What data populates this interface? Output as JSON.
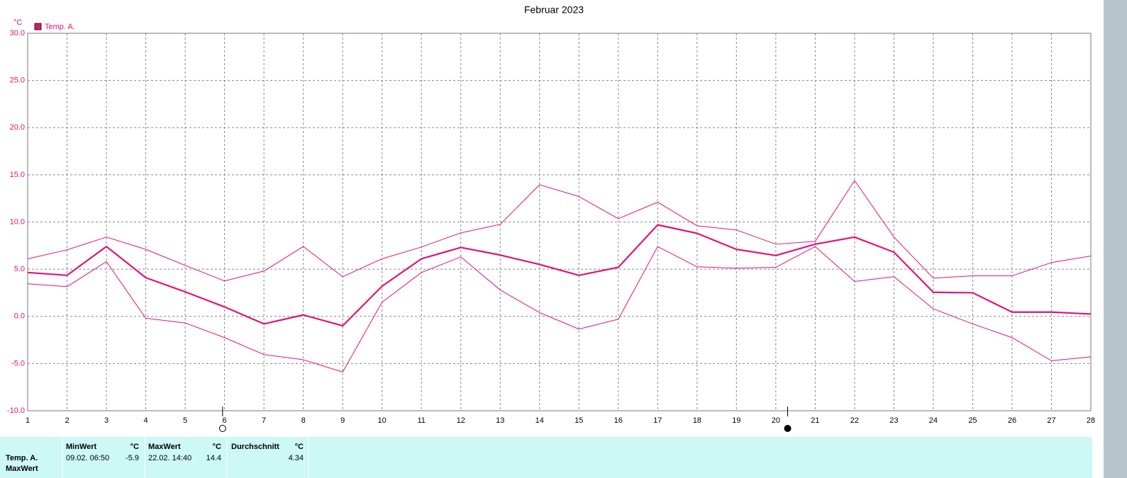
{
  "chart_data": {
    "type": "line",
    "title": "Februar 2023",
    "y_unit": "°C",
    "x": [
      1,
      2,
      3,
      4,
      5,
      6,
      7,
      8,
      9,
      10,
      11,
      12,
      13,
      14,
      15,
      16,
      17,
      18,
      19,
      20,
      21,
      22,
      23,
      24,
      25,
      26,
      27,
      28
    ],
    "xlim": [
      1,
      28
    ],
    "xticks": [
      1,
      2,
      3,
      4,
      5,
      6,
      7,
      8,
      9,
      10,
      11,
      12,
      13,
      14,
      15,
      16,
      17,
      18,
      19,
      20,
      21,
      22,
      23,
      24,
      25,
      26,
      27,
      28
    ],
    "ylim": [
      -10,
      30
    ],
    "yticks": [
      {
        "value": -10,
        "label": "-10.0"
      },
      {
        "value": -5,
        "label": "-5.0"
      },
      {
        "value": 0,
        "label": "0.0"
      },
      {
        "value": 5,
        "label": "5.0"
      },
      {
        "value": 10,
        "label": "10.0"
      },
      {
        "value": 15,
        "label": "15.0"
      },
      {
        "value": 20,
        "label": "20.0"
      },
      {
        "value": 25,
        "label": "25.0"
      },
      {
        "value": 30,
        "label": "30.0"
      }
    ],
    "grid": true,
    "legend": "top-left",
    "series": [
      {
        "name": "Temp. A.",
        "color": "#e0147a",
        "line_width": 2.2,
        "values": [
          4.65,
          4.35,
          7.4,
          4.1,
          2.6,
          1.0,
          -0.8,
          0.15,
          -1.0,
          3.2,
          6.1,
          7.3,
          6.5,
          5.5,
          4.35,
          5.2,
          9.7,
          8.8,
          7.1,
          6.45,
          7.65,
          8.4,
          6.8,
          2.55,
          2.5,
          0.45,
          0.45,
          0.25
        ]
      },
      {
        "color": "#e0147a",
        "line_width": 1,
        "values": [
          6.1,
          7.05,
          8.4,
          7.1,
          5.4,
          3.75,
          4.8,
          7.4,
          4.2,
          6.1,
          7.35,
          8.85,
          9.75,
          13.95,
          12.7,
          10.35,
          12.1,
          9.6,
          9.15,
          7.65,
          7.95,
          14.4,
          8.4,
          4.05,
          4.3,
          4.3,
          5.7,
          6.4
        ]
      },
      {
        "color": "#e0147a",
        "line_width": 1,
        "values": [
          3.45,
          3.15,
          5.8,
          -0.2,
          -0.7,
          -2.25,
          -4.05,
          -4.6,
          -5.9,
          1.5,
          4.65,
          6.3,
          2.8,
          0.4,
          -1.35,
          -0.3,
          7.4,
          5.25,
          5.1,
          5.2,
          7.4,
          3.7,
          4.2,
          0.8,
          -0.8,
          -2.25,
          -4.7,
          -4.3
        ]
      }
    ],
    "markers": [
      {
        "x": 5.95,
        "fill": "none"
      },
      {
        "x": 20.3,
        "fill": "#000"
      }
    ]
  },
  "table": {
    "row_labels": [
      "Temp. A.",
      "MaxWert"
    ],
    "columns": [
      {
        "title": "MinWert",
        "unit": "°C"
      },
      {
        "title": "MaxWert",
        "unit": "°C"
      },
      {
        "title": "Durchschnitt",
        "unit": "°C"
      }
    ],
    "cells": [
      {
        "time": "09.02. 06:50",
        "value": -5.9
      },
      {
        "time": "22.02. 14:40",
        "value": 14.4
      },
      {
        "value": 4.34
      }
    ]
  }
}
